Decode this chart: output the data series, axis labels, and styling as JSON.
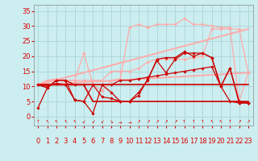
{
  "background_color": "#cceef0",
  "grid_color": "#aad4d8",
  "xlabel": "Vent moyen/en rafales ( km/h )",
  "xlabel_color": "#dd0000",
  "xlabel_fontsize": 7.5,
  "tick_color": "#dd0000",
  "tick_fontsize": 6,
  "ylim": [
    -3,
    37
  ],
  "xlim": [
    -0.5,
    23.5
  ],
  "yticks": [
    0,
    5,
    10,
    15,
    20,
    25,
    30,
    35
  ],
  "xticks": [
    0,
    1,
    2,
    3,
    4,
    5,
    6,
    7,
    8,
    9,
    10,
    11,
    12,
    13,
    14,
    15,
    16,
    17,
    18,
    19,
    20,
    21,
    22,
    23
  ],
  "series": [
    {
      "x": [
        0,
        1,
        2,
        3,
        4,
        5,
        6,
        7,
        8,
        9,
        10,
        11,
        12,
        13,
        14,
        15,
        16,
        17,
        18,
        19,
        20,
        21,
        22,
        23
      ],
      "y": [
        10.5,
        9.5,
        12,
        12,
        10.5,
        10.5,
        10.5,
        10.5,
        10.5,
        12,
        12,
        12.5,
        13,
        13.5,
        14,
        14.5,
        15,
        15.5,
        16,
        16.5,
        10,
        5,
        4.5,
        4.5
      ],
      "color": "#cc0000",
      "lw": 0.9,
      "marker": "D",
      "ms": 1.8
    },
    {
      "x": [
        0,
        1,
        2,
        3,
        4,
        5,
        6,
        7,
        8,
        9,
        10,
        11,
        12,
        13,
        14,
        15,
        16,
        17,
        18,
        19,
        20,
        21,
        22,
        23
      ],
      "y": [
        10.5,
        10,
        11,
        10.5,
        5.5,
        5,
        10.5,
        6.5,
        6,
        5,
        5,
        8,
        12,
        19,
        19.5,
        19.5,
        21.5,
        20,
        21,
        19.5,
        10,
        16,
        5,
        4.5
      ],
      "color": "#cc0000",
      "lw": 0.9,
      "marker": "D",
      "ms": 1.8
    },
    {
      "x": [
        0,
        1,
        2,
        3,
        4,
        5,
        6,
        7,
        8,
        9,
        10,
        11,
        12,
        13,
        14,
        15,
        16,
        17,
        18,
        19,
        20,
        21,
        22,
        23
      ],
      "y": [
        3,
        9.5,
        12,
        12,
        5.5,
        5,
        1,
        10.5,
        8,
        5,
        5,
        7,
        12.5,
        18.5,
        14.5,
        19,
        21,
        21,
        21,
        19.5,
        10,
        16,
        4.5,
        4.5
      ],
      "color": "#cc0000",
      "lw": 0.9,
      "marker": "D",
      "ms": 1.8
    },
    {
      "x": [
        0,
        1,
        2,
        3,
        4,
        5,
        6,
        7,
        8,
        9,
        10,
        11,
        12,
        13,
        14,
        15,
        16,
        17,
        18,
        19,
        20,
        21,
        22,
        23
      ],
      "y": [
        10.5,
        10.5,
        10.5,
        10.5,
        10.5,
        10.5,
        10.5,
        10.5,
        10.5,
        10.5,
        10.5,
        10.5,
        10.5,
        10.5,
        10.5,
        10.5,
        10.5,
        10.5,
        10.5,
        10.5,
        10.5,
        10.5,
        10.5,
        10.5
      ],
      "color": "#cc0000",
      "lw": 1.2,
      "marker": null,
      "ms": 0
    },
    {
      "x": [
        0,
        5,
        6,
        23
      ],
      "y": [
        10.5,
        10.5,
        5.0,
        5.0
      ],
      "color": "#cc0000",
      "lw": 1.2,
      "marker": null,
      "ms": 0
    },
    {
      "x": [
        0,
        1,
        2,
        3,
        4,
        5,
        6,
        7,
        8,
        9,
        10,
        11,
        12,
        13,
        14,
        15,
        16,
        17,
        18,
        19,
        20,
        21,
        22,
        23
      ],
      "y": [
        10.5,
        12,
        12,
        12,
        12,
        21,
        10.5,
        8.5,
        12,
        12.5,
        29.5,
        30.5,
        29.5,
        30.5,
        30.5,
        30.5,
        32.5,
        30.5,
        30.5,
        30,
        29.5,
        29.5,
        5,
        14.5
      ],
      "color": "#ffaaaa",
      "lw": 0.9,
      "marker": "D",
      "ms": 1.8
    },
    {
      "x": [
        0,
        1,
        2,
        3,
        4,
        5,
        6,
        7,
        8,
        9,
        10,
        11,
        12,
        13,
        14,
        15,
        16,
        17,
        18,
        19,
        20,
        21,
        22,
        23
      ],
      "y": [
        10.5,
        12,
        12.5,
        12,
        12,
        12,
        12,
        12,
        15,
        15,
        15,
        16,
        18,
        19,
        19,
        19,
        19,
        19.5,
        20,
        29,
        29,
        29,
        29,
        14.5
      ],
      "color": "#ffaaaa",
      "lw": 0.9,
      "marker": "D",
      "ms": 1.8
    },
    {
      "x": [
        0,
        23
      ],
      "y": [
        10.5,
        29.0
      ],
      "color": "#ffaaaa",
      "lw": 1.4,
      "marker": null,
      "ms": 0
    },
    {
      "x": [
        0,
        23
      ],
      "y": [
        10.5,
        14.5
      ],
      "color": "#ffaaaa",
      "lw": 1.4,
      "marker": null,
      "ms": 0
    }
  ],
  "wind_arrows": [
    "↑",
    "↖",
    "↖",
    "↖",
    "↖",
    "↙",
    "↙",
    "↙",
    "↘",
    "→",
    "→",
    "↗",
    "↗",
    "↗",
    "↗",
    "↗",
    "↑",
    "↑",
    "↑",
    "↖",
    "↖",
    "↑",
    "↗",
    "↗"
  ]
}
